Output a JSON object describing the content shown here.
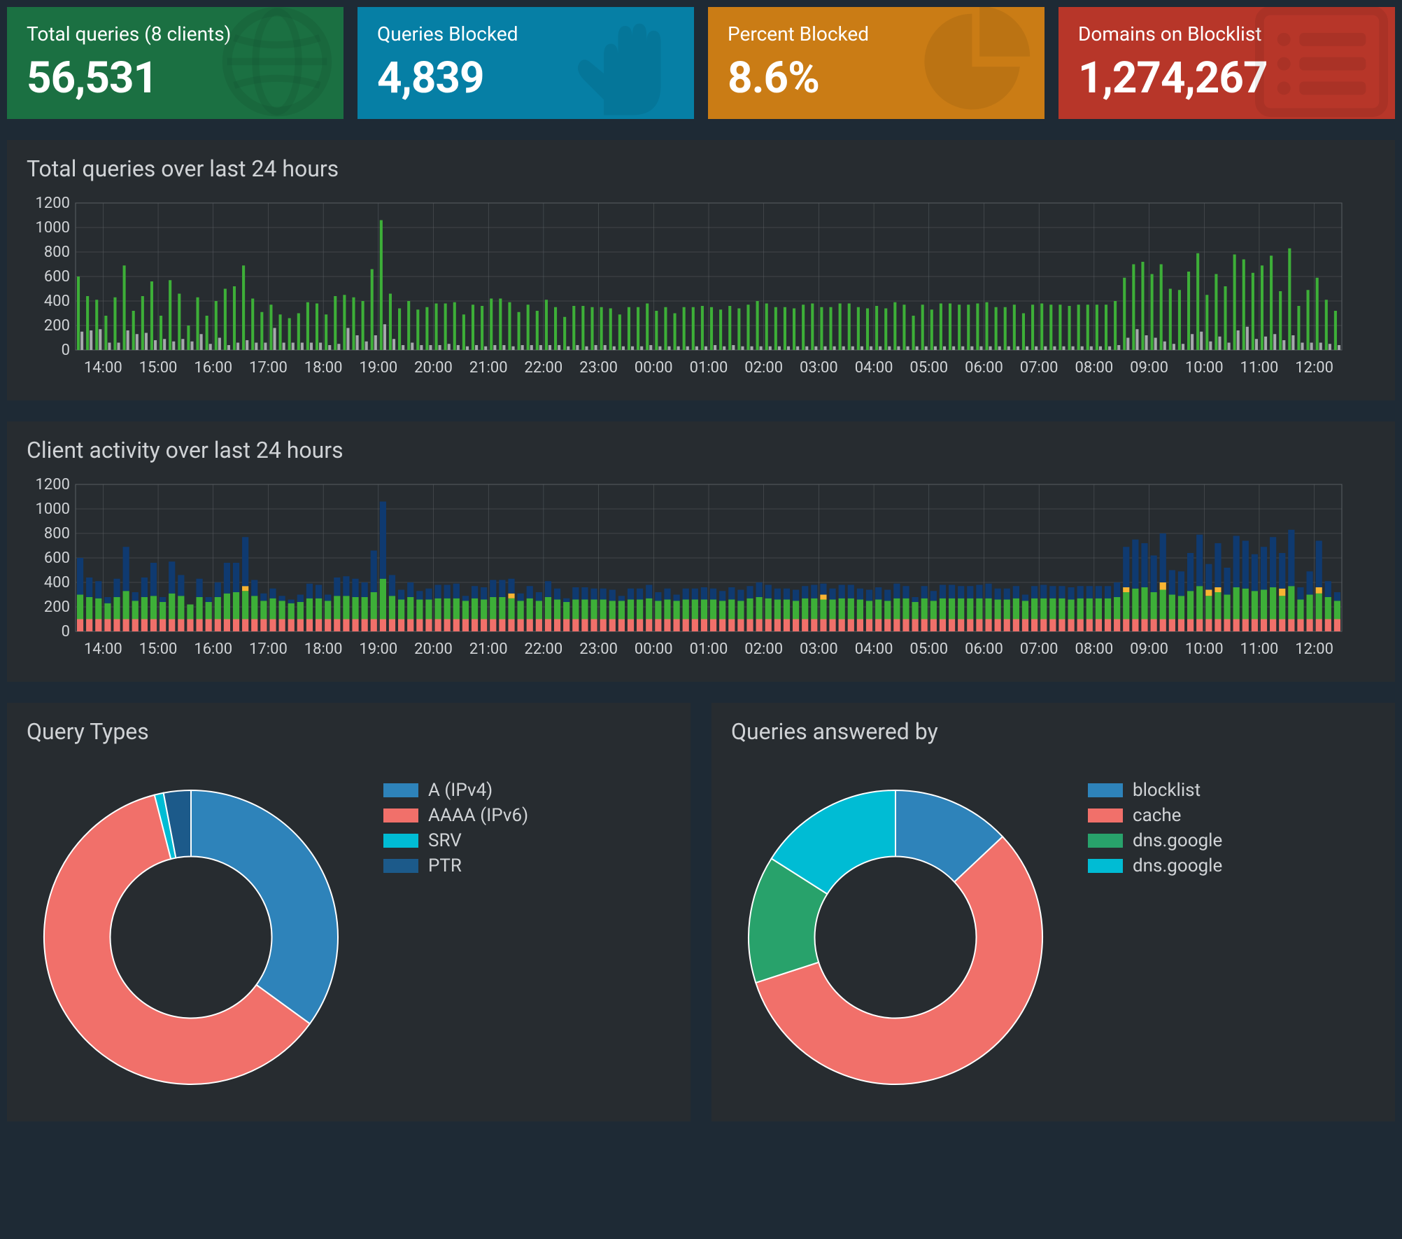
{
  "theme": {
    "page_bg": "#1e2a35",
    "panel_bg": "#272c30",
    "text_muted": "#d0d3d6",
    "grid_color": "#5a5f63",
    "axis_font_size": 22
  },
  "cards": [
    {
      "label": "Total queries (8 clients)",
      "value": "56,531",
      "bg": "#1b7042",
      "icon": "globe-icon"
    },
    {
      "label": "Queries Blocked",
      "value": "4,839",
      "bg": "#067fa5",
      "icon": "hand-icon"
    },
    {
      "label": "Percent Blocked",
      "value": "8.6%",
      "bg": "#ca7c15",
      "icon": "pie-icon"
    },
    {
      "label": "Domains on Blocklist",
      "value": "1,274,267",
      "bg": "#b73629",
      "icon": "list-icon"
    }
  ],
  "chart1": {
    "title": "Total queries over last 24 hours",
    "type": "bar-grouped",
    "ylim": [
      0,
      1200
    ],
    "ytick_step": 200,
    "x_labels": [
      "14:00",
      "15:00",
      "16:00",
      "17:00",
      "18:00",
      "19:00",
      "20:00",
      "21:00",
      "22:00",
      "23:00",
      "00:00",
      "01:00",
      "02:00",
      "03:00",
      "04:00",
      "05:00",
      "06:00",
      "07:00",
      "08:00",
      "09:00",
      "10:00",
      "11:00",
      "12:00"
    ],
    "colors": {
      "allowed": "#3daf38",
      "blocked": "#a6a9ac"
    },
    "allowed": [
      600,
      440,
      410,
      280,
      430,
      690,
      320,
      440,
      560,
      280,
      570,
      460,
      200,
      430,
      280,
      400,
      500,
      520,
      690,
      420,
      310,
      370,
      290,
      260,
      300,
      390,
      380,
      290,
      440,
      450,
      430,
      400,
      660,
      1060,
      460,
      340,
      400,
      330,
      350,
      380,
      380,
      390,
      290,
      370,
      360,
      420,
      420,
      390,
      310,
      370,
      320,
      410,
      350,
      270,
      360,
      360,
      350,
      350,
      340,
      290,
      350,
      350,
      380,
      320,
      350,
      300,
      350,
      350,
      360,
      350,
      330,
      360,
      340,
      370,
      400,
      380,
      350,
      350,
      340,
      370,
      380,
      350,
      350,
      380,
      380,
      350,
      340,
      360,
      340,
      390,
      370,
      280,
      370,
      330,
      380,
      380,
      370,
      370,
      380,
      390,
      350,
      350,
      370,
      300,
      370,
      380,
      370,
      370,
      360,
      370,
      370,
      370,
      370,
      400,
      590,
      700,
      720,
      620,
      700,
      500,
      490,
      640,
      790,
      450,
      620,
      520,
      780,
      740,
      630,
      690,
      770,
      480,
      830,
      360,
      490,
      590,
      410,
      320
    ],
    "blocked": [
      150,
      160,
      170,
      60,
      60,
      160,
      130,
      140,
      80,
      90,
      70,
      90,
      70,
      130,
      50,
      100,
      40,
      60,
      80,
      60,
      60,
      180,
      60,
      60,
      60,
      60,
      60,
      40,
      50,
      180,
      120,
      70,
      120,
      210,
      90,
      40,
      60,
      40,
      40,
      40,
      50,
      40,
      30,
      40,
      30,
      40,
      40,
      30,
      40,
      40,
      40,
      40,
      40,
      30,
      40,
      30,
      40,
      40,
      30,
      30,
      30,
      30,
      40,
      30,
      30,
      30,
      30,
      30,
      30,
      40,
      30,
      40,
      30,
      30,
      30,
      30,
      30,
      30,
      30,
      30,
      30,
      30,
      30,
      30,
      30,
      30,
      30,
      30,
      30,
      30,
      30,
      30,
      30,
      30,
      30,
      30,
      30,
      30,
      30,
      30,
      30,
      30,
      30,
      30,
      30,
      30,
      30,
      30,
      30,
      30,
      30,
      30,
      30,
      40,
      100,
      170,
      120,
      100,
      70,
      50,
      50,
      130,
      150,
      70,
      110,
      60,
      160,
      190,
      90,
      110,
      130,
      80,
      120,
      60,
      60,
      60,
      50,
      40
    ]
  },
  "chart2": {
    "title": "Client activity over last 24 hours",
    "type": "bar-stacked",
    "ylim": [
      0,
      1200
    ],
    "ytick_step": 200,
    "x_labels": [
      "14:00",
      "15:00",
      "16:00",
      "17:00",
      "18:00",
      "19:00",
      "20:00",
      "21:00",
      "22:00",
      "23:00",
      "00:00",
      "01:00",
      "02:00",
      "03:00",
      "04:00",
      "05:00",
      "06:00",
      "07:00",
      "08:00",
      "09:00",
      "10:00",
      "11:00",
      "12:00"
    ],
    "colors": {
      "a": "#f1706a",
      "b": "#3daf38",
      "c": "#f8b433",
      "d": "#0f3a70"
    },
    "series_a": [
      100,
      100,
      100,
      100,
      100,
      100,
      100,
      100,
      100,
      100,
      100,
      100,
      100,
      100,
      100,
      100,
      100,
      100,
      100,
      100,
      100,
      100,
      100,
      100,
      100,
      100,
      100,
      100,
      100,
      100,
      100,
      100,
      100,
      100,
      100,
      100,
      100,
      100,
      100,
      100,
      100,
      100,
      100,
      100,
      100,
      100,
      100,
      100,
      100,
      100,
      100,
      100,
      100,
      100,
      100,
      100,
      100,
      100,
      100,
      100,
      100,
      100,
      100,
      100,
      100,
      100,
      100,
      100,
      100,
      100,
      100,
      100,
      100,
      100,
      100,
      100,
      100,
      100,
      100,
      100,
      100,
      100,
      100,
      100,
      100,
      100,
      100,
      100,
      100,
      100,
      100,
      100,
      100,
      100,
      100,
      100,
      100,
      100,
      100,
      100,
      100,
      100,
      100,
      100,
      100,
      100,
      100,
      100,
      100,
      100,
      100,
      100,
      100,
      100,
      100,
      100,
      100,
      100,
      100,
      100,
      100,
      100,
      100,
      100,
      100,
      100,
      100,
      100,
      100,
      100,
      100,
      100,
      100,
      100,
      100,
      100,
      100,
      100
    ],
    "series_b": [
      200,
      180,
      170,
      130,
      180,
      230,
      150,
      180,
      190,
      140,
      210,
      190,
      120,
      180,
      140,
      180,
      210,
      220,
      230,
      190,
      150,
      170,
      150,
      130,
      140,
      170,
      170,
      150,
      190,
      190,
      180,
      180,
      220,
      330,
      190,
      160,
      180,
      160,
      160,
      170,
      170,
      170,
      150,
      170,
      160,
      180,
      180,
      170,
      150,
      170,
      150,
      180,
      160,
      140,
      160,
      160,
      160,
      160,
      150,
      150,
      160,
      160,
      170,
      150,
      160,
      150,
      160,
      160,
      160,
      160,
      150,
      160,
      150,
      170,
      180,
      170,
      160,
      160,
      150,
      170,
      170,
      160,
      160,
      170,
      170,
      160,
      150,
      160,
      150,
      170,
      170,
      140,
      170,
      150,
      170,
      170,
      170,
      170,
      170,
      170,
      160,
      160,
      170,
      150,
      170,
      170,
      170,
      170,
      160,
      170,
      170,
      170,
      170,
      180,
      220,
      250,
      260,
      220,
      240,
      200,
      190,
      230,
      270,
      190,
      220,
      200,
      260,
      250,
      230,
      240,
      260,
      190,
      270,
      160,
      200,
      210,
      180,
      150
    ],
    "series_c": [
      0,
      0,
      0,
      0,
      0,
      0,
      0,
      0,
      0,
      0,
      0,
      0,
      0,
      0,
      0,
      0,
      0,
      0,
      40,
      0,
      0,
      0,
      0,
      0,
      0,
      0,
      0,
      0,
      0,
      0,
      0,
      0,
      0,
      0,
      0,
      0,
      0,
      0,
      0,
      0,
      0,
      0,
      0,
      0,
      0,
      0,
      0,
      40,
      0,
      0,
      0,
      0,
      0,
      0,
      0,
      0,
      0,
      0,
      0,
      0,
      0,
      0,
      0,
      0,
      0,
      0,
      0,
      0,
      0,
      0,
      0,
      0,
      0,
      0,
      0,
      0,
      0,
      0,
      0,
      0,
      0,
      40,
      0,
      0,
      0,
      0,
      0,
      0,
      0,
      0,
      0,
      0,
      0,
      0,
      0,
      0,
      0,
      0,
      0,
      0,
      0,
      0,
      0,
      0,
      0,
      0,
      0,
      0,
      0,
      0,
      0,
      0,
      0,
      0,
      40,
      0,
      0,
      0,
      60,
      0,
      0,
      0,
      0,
      50,
      40,
      0,
      0,
      0,
      0,
      0,
      0,
      60,
      0,
      0,
      0,
      50,
      0,
      0
    ],
    "series_d": [
      300,
      160,
      140,
      50,
      150,
      360,
      70,
      160,
      270,
      40,
      260,
      170,
      0,
      150,
      40,
      120,
      250,
      240,
      400,
      130,
      60,
      80,
      40,
      30,
      60,
      120,
      110,
      50,
      150,
      160,
      150,
      120,
      340,
      630,
      170,
      80,
      120,
      70,
      90,
      110,
      110,
      120,
      40,
      100,
      100,
      140,
      140,
      120,
      60,
      100,
      70,
      130,
      90,
      30,
      100,
      100,
      90,
      90,
      90,
      40,
      90,
      90,
      110,
      70,
      90,
      50,
      90,
      90,
      100,
      90,
      80,
      100,
      90,
      100,
      120,
      110,
      90,
      90,
      90,
      100,
      110,
      90,
      90,
      110,
      110,
      90,
      90,
      100,
      90,
      120,
      100,
      40,
      100,
      80,
      110,
      110,
      100,
      100,
      110,
      120,
      90,
      90,
      100,
      50,
      100,
      110,
      100,
      100,
      100,
      100,
      100,
      100,
      100,
      120,
      330,
      400,
      360,
      300,
      400,
      200,
      200,
      310,
      420,
      210,
      360,
      220,
      420,
      390,
      300,
      350,
      410,
      290,
      460,
      100,
      190,
      380,
      130,
      70
    ]
  },
  "donut1": {
    "title": "Query Types",
    "type": "donut",
    "items": [
      {
        "label": "A (IPv4)",
        "color": "#2e83ba",
        "value": 35
      },
      {
        "label": "AAAA (IPv6)",
        "color": "#f1706a",
        "value": 61
      },
      {
        "label": "SRV",
        "color": "#00bcd4",
        "value": 1
      },
      {
        "label": "PTR",
        "color": "#1c5a8a",
        "value": 3
      }
    ],
    "inner_radius_pct": 55
  },
  "donut2": {
    "title": "Queries answered by",
    "type": "donut",
    "items": [
      {
        "label": "blocklist",
        "color": "#2e83ba",
        "value": 13
      },
      {
        "label": "cache",
        "color": "#f1706a",
        "value": 57
      },
      {
        "label": "dns.google",
        "color": "#28a26b",
        "value": 14
      },
      {
        "label": "dns.google",
        "color": "#00bcd4",
        "value": 16
      }
    ],
    "inner_radius_pct": 55
  }
}
